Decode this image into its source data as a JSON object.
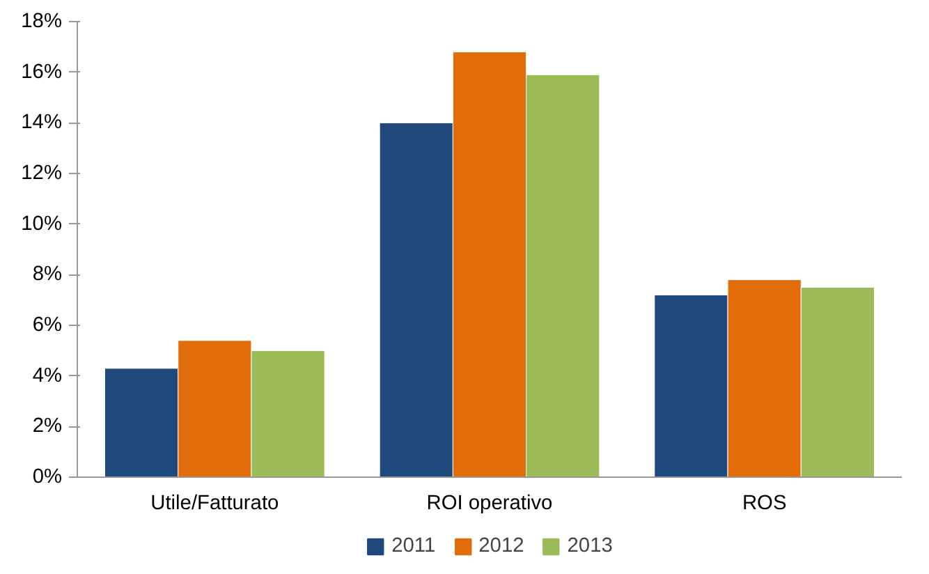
{
  "chart_data": {
    "type": "bar",
    "categories": [
      "Utile/Fatturato",
      "ROI operativo",
      "ROS"
    ],
    "series": [
      {
        "name": "2011",
        "color": "#1f497d",
        "values": [
          4.3,
          14.0,
          7.2
        ]
      },
      {
        "name": "2012",
        "color": "#e36c0a",
        "values": [
          5.4,
          16.8,
          7.8
        ]
      },
      {
        "name": "2013",
        "color": "#9bbb59",
        "values": [
          5.0,
          15.9,
          7.5
        ]
      }
    ],
    "ylim": [
      0,
      18
    ],
    "yticks": [
      {
        "value": 0,
        "label": "0%"
      },
      {
        "value": 2,
        "label": "2%"
      },
      {
        "value": 4,
        "label": "4%"
      },
      {
        "value": 6,
        "label": "6%"
      },
      {
        "value": 8,
        "label": "8%"
      },
      {
        "value": 10,
        "label": "10%"
      },
      {
        "value": 12,
        "label": "12%"
      },
      {
        "value": 14,
        "label": "14%"
      },
      {
        "value": 16,
        "label": "16%"
      },
      {
        "value": 18,
        "label": "18%"
      }
    ],
    "grid": false,
    "legend": "bottom"
  }
}
